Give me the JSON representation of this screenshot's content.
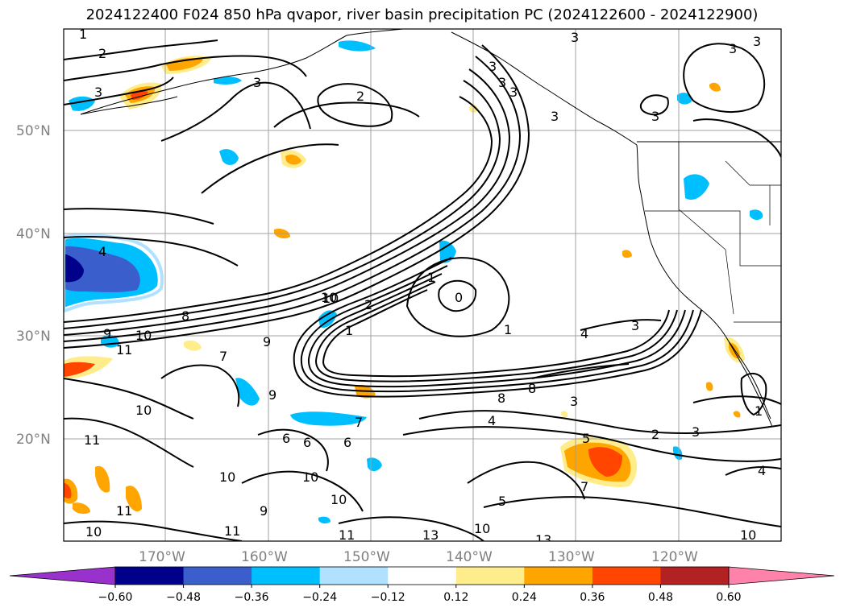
{
  "title": "2024122400 F024 850 hPa qvapor, river basin precipitation PC (2024122600 - 2024122900)",
  "lat_ticks": [
    "50°N",
    "40°N",
    "30°N",
    "20°N"
  ],
  "lon_ticks": [
    "170°W",
    "160°W",
    "150°W",
    "140°W",
    "130°W",
    "120°W"
  ],
  "colorbar": {
    "colors": [
      "#9932CC",
      "#00008B",
      "#3A5FCD",
      "#00BFFF",
      "#B0E2FF",
      "#FFFFFF",
      "#FFEC8B",
      "#FFA500",
      "#FF4500",
      "#B22222",
      "#FF82AB"
    ],
    "tick_labels": [
      "−0.60",
      "−0.48",
      "−0.36",
      "−0.24",
      "−0.12",
      "0.12",
      "0.24",
      "0.36",
      "0.48",
      "0.60"
    ],
    "extend": "both"
  },
  "contour_labels": [
    "1",
    "2",
    "3",
    "3",
    "3",
    "3",
    "3",
    "2",
    "3",
    "3",
    "3",
    "3",
    "4",
    "3",
    "8",
    "7",
    "9",
    "10",
    "10",
    "11",
    "9",
    "9",
    "11",
    "10",
    "10",
    "11",
    "10",
    "9",
    "10",
    "10",
    "11",
    "11",
    "13",
    "13",
    "10",
    "10",
    "6",
    "6",
    "6",
    "7",
    "7",
    "5",
    "5",
    "8",
    "8",
    "4",
    "4",
    "3",
    "2",
    "3",
    "3",
    "1",
    "1",
    "1",
    "1",
    "2",
    "0",
    "10",
    "4"
  ],
  "shading_values": [
    -0.5,
    -0.4,
    -0.3,
    -0.2,
    0.15,
    0.3,
    0.4,
    0.45
  ]
}
